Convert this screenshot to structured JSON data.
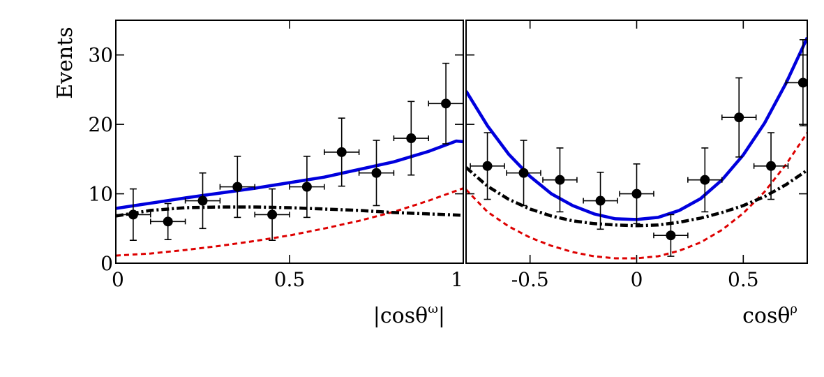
{
  "figure": {
    "ylabel": "Events",
    "left_xlabel": {
      "pre": "|cosθ",
      "sup": "ω",
      "post": "|"
    },
    "right_xlabel": {
      "pre": "cosθ",
      "sup": "ρ",
      "post": ""
    }
  },
  "chart_data": [
    {
      "type": "scatter",
      "xlim": [
        0,
        1
      ],
      "ylim": [
        0,
        35
      ],
      "x_ticks": [
        0,
        0.5,
        1
      ],
      "x_tick_labels": [
        "0",
        "0.5",
        "1"
      ],
      "y_ticks": [
        0,
        10,
        20,
        30
      ],
      "y_tick_labels": [
        "0",
        "10",
        "20",
        "30"
      ],
      "points": {
        "x": [
          0.05,
          0.15,
          0.25,
          0.35,
          0.45,
          0.55,
          0.65,
          0.75,
          0.85,
          0.95
        ],
        "y": [
          7,
          6,
          9,
          11,
          7,
          11,
          16,
          13,
          18,
          23
        ],
        "xerr": 0.05,
        "yerr": [
          3.7,
          2.6,
          4.0,
          4.4,
          3.7,
          4.4,
          4.9,
          4.7,
          5.3,
          5.8
        ]
      },
      "series": [
        {
          "style": "solid",
          "color": "#0000dd",
          "x": [
            0,
            0.2,
            0.4,
            0.6,
            0.8,
            0.9,
            0.98,
            1.0
          ],
          "y": [
            7.9,
            9.4,
            10.8,
            12.4,
            14.6,
            16.1,
            17.6,
            17.5
          ]
        },
        {
          "style": "dashed",
          "color": "#dd0000",
          "x": [
            0,
            0.1,
            0.2,
            0.3,
            0.4,
            0.5,
            0.6,
            0.7,
            0.8,
            0.9,
            1.0
          ],
          "y": [
            1.1,
            1.4,
            1.9,
            2.5,
            3.2,
            4.0,
            5.0,
            6.1,
            7.4,
            9.0,
            10.8
          ]
        },
        {
          "style": "dashdot",
          "color": "#000000",
          "x": [
            0,
            0.1,
            0.2,
            0.3,
            0.4,
            0.5,
            0.6,
            0.7,
            0.8,
            0.9,
            1.0
          ],
          "y": [
            6.8,
            7.6,
            8.0,
            8.1,
            8.1,
            8.0,
            7.8,
            7.6,
            7.3,
            7.1,
            6.9
          ]
        }
      ]
    },
    {
      "type": "scatter",
      "xlim": [
        -0.8,
        0.8
      ],
      "ylim": [
        0,
        35
      ],
      "x_ticks": [
        -0.5,
        0,
        0.5
      ],
      "x_tick_labels": [
        "-0.5",
        "0",
        "0.5"
      ],
      "y_ticks": [
        0,
        10,
        20,
        30
      ],
      "y_tick_labels": [],
      "points": {
        "x": [
          -0.7,
          -0.53,
          -0.36,
          -0.17,
          0.0,
          0.16,
          0.32,
          0.48,
          0.63,
          0.78
        ],
        "y": [
          14,
          13,
          12,
          9,
          10,
          4,
          12,
          21,
          14,
          26
        ],
        "xerr": 0.08,
        "yerr": [
          4.8,
          4.7,
          4.6,
          4.1,
          4.3,
          3.0,
          4.6,
          5.7,
          4.8,
          6.2
        ]
      },
      "series": [
        {
          "style": "solid",
          "color": "#0000dd",
          "x": [
            -0.8,
            -0.7,
            -0.6,
            -0.5,
            -0.4,
            -0.3,
            -0.2,
            -0.1,
            0.0,
            0.1,
            0.2,
            0.3,
            0.4,
            0.5,
            0.6,
            0.7,
            0.8
          ],
          "y": [
            24.8,
            19.8,
            15.7,
            12.5,
            10.0,
            8.3,
            7.1,
            6.4,
            6.3,
            6.6,
            7.6,
            9.3,
            12.0,
            15.6,
            20.2,
            25.9,
            32.5
          ]
        },
        {
          "style": "dashed",
          "color": "#dd0000",
          "x": [
            -0.8,
            -0.7,
            -0.6,
            -0.5,
            -0.4,
            -0.3,
            -0.2,
            -0.1,
            0.0,
            0.1,
            0.2,
            0.3,
            0.4,
            0.5,
            0.6,
            0.7,
            0.8
          ],
          "y": [
            10.6,
            7.4,
            5.3,
            3.7,
            2.5,
            1.6,
            1.0,
            0.7,
            0.7,
            1.0,
            1.8,
            3.0,
            4.8,
            7.2,
            10.3,
            14.2,
            18.8
          ]
        },
        {
          "style": "dashdot",
          "color": "#000000",
          "x": [
            -0.8,
            -0.7,
            -0.6,
            -0.5,
            -0.4,
            -0.3,
            -0.2,
            -0.1,
            0.0,
            0.1,
            0.2,
            0.3,
            0.4,
            0.5,
            0.6,
            0.7,
            0.8
          ],
          "y": [
            13.8,
            11.1,
            9.2,
            7.8,
            6.8,
            6.1,
            5.7,
            5.5,
            5.4,
            5.5,
            5.9,
            6.5,
            7.3,
            8.3,
            9.6,
            11.3,
            13.4
          ]
        }
      ]
    }
  ]
}
